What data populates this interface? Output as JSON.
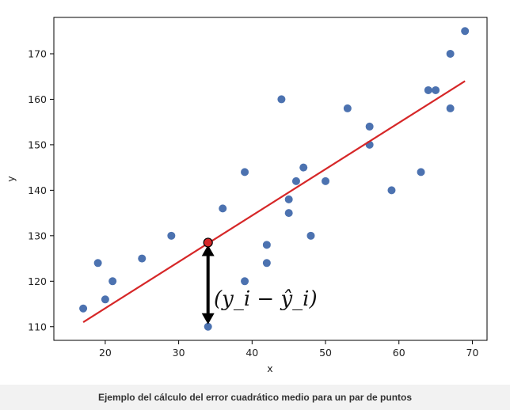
{
  "caption": "Ejemplo del cálculo del error cuadrático medio para un par de puntos",
  "chart_data": {
    "type": "scatter",
    "title": "",
    "xlabel": "x",
    "ylabel": "y",
    "xlim": [
      13,
      72
    ],
    "ylim": [
      107,
      178
    ],
    "xticks": [
      20,
      30,
      40,
      50,
      60,
      70
    ],
    "yticks": [
      110,
      120,
      130,
      140,
      150,
      160,
      170
    ],
    "grid": false,
    "points": [
      {
        "x": 17,
        "y": 114
      },
      {
        "x": 19,
        "y": 124
      },
      {
        "x": 20,
        "y": 116
      },
      {
        "x": 21,
        "y": 120
      },
      {
        "x": 25,
        "y": 125
      },
      {
        "x": 29,
        "y": 130
      },
      {
        "x": 34,
        "y": 110
      },
      {
        "x": 36,
        "y": 136
      },
      {
        "x": 39,
        "y": 144
      },
      {
        "x": 39,
        "y": 120
      },
      {
        "x": 42,
        "y": 128
      },
      {
        "x": 42,
        "y": 124
      },
      {
        "x": 44,
        "y": 160
      },
      {
        "x": 45,
        "y": 138
      },
      {
        "x": 45,
        "y": 135
      },
      {
        "x": 46,
        "y": 142
      },
      {
        "x": 47,
        "y": 145
      },
      {
        "x": 48,
        "y": 130
      },
      {
        "x": 50,
        "y": 142
      },
      {
        "x": 53,
        "y": 158
      },
      {
        "x": 56,
        "y": 154
      },
      {
        "x": 56,
        "y": 150
      },
      {
        "x": 59,
        "y": 140
      },
      {
        "x": 63,
        "y": 144
      },
      {
        "x": 64,
        "y": 162
      },
      {
        "x": 65,
        "y": 162
      },
      {
        "x": 67,
        "y": 170
      },
      {
        "x": 67,
        "y": 158
      },
      {
        "x": 69,
        "y": 175
      }
    ],
    "regression_line": {
      "x": [
        17,
        69
      ],
      "y": [
        111,
        164
      ]
    },
    "highlight_point": {
      "x": 34,
      "y": 128.5
    },
    "residual_label": "(y_i − ŷ_i)",
    "colors": {
      "points": "#4c72b0",
      "line": "#d62728",
      "highlight": "#d62728",
      "arrow": "#000000"
    }
  }
}
